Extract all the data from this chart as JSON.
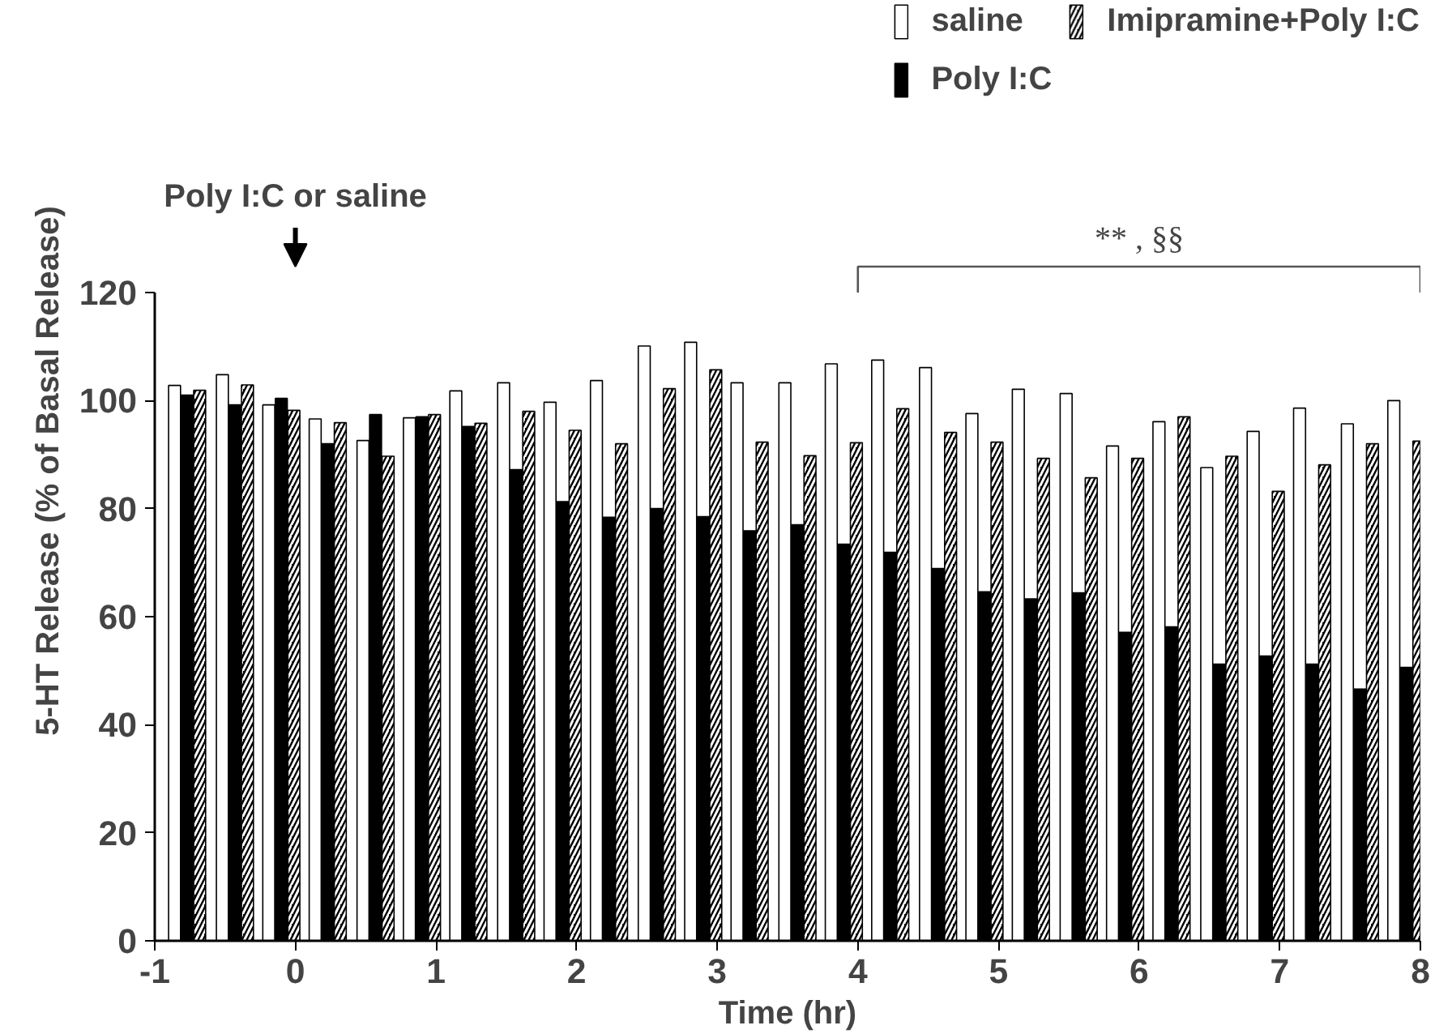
{
  "chart_data": {
    "type": "bar",
    "xlabel": "Time (hr)",
    "ylabel": "5-HT Release (% of Basal Release)",
    "x": [
      -0.77,
      -0.43,
      -0.1,
      0.23,
      0.57,
      0.9,
      1.23,
      1.57,
      1.9,
      2.23,
      2.57,
      2.9,
      3.23,
      3.57,
      3.9,
      4.23,
      4.57,
      4.9,
      5.23,
      5.57,
      5.9,
      6.23,
      6.57,
      6.9,
      7.23,
      7.57,
      7.9
    ],
    "series": [
      {
        "name": "saline",
        "color": "#ffffff",
        "values": [
          102.8,
          104.8,
          99.2,
          96.6,
          92.6,
          96.8,
          101.8,
          103.3,
          99.7,
          103.7,
          110.1,
          110.8,
          103.3,
          103.3,
          106.8,
          107.5,
          106.1,
          97.6,
          102.1,
          101.3,
          91.6,
          96.1,
          87.6,
          94.3,
          98.6,
          95.7,
          100
        ]
      },
      {
        "name": "Poly I:C",
        "color": "#000000",
        "values": [
          101,
          99.2,
          100.4,
          92,
          97.4,
          97,
          95.2,
          87.2,
          81.3,
          78.4,
          80,
          78.5,
          75.9,
          77,
          73.4,
          71.9,
          68.9,
          64.6,
          63.3,
          64.4,
          57.1,
          58.1,
          51.2,
          52.7,
          51.2,
          46.6,
          50.6
        ]
      },
      {
        "name": "Imipramine+Poly I:C",
        "color": "#000000",
        "values": [
          101.9,
          102.9,
          98.2,
          95.9,
          89.7,
          97.4,
          95.8,
          98,
          94.5,
          92,
          102.2,
          105.7,
          92.3,
          89.8,
          92.2,
          98.5,
          94.1,
          92.3,
          89.3,
          85.7,
          89.3,
          97,
          89.7,
          83.2,
          88.1,
          92,
          92.5
        ]
      }
    ],
    "xlim": [
      -1,
      8
    ],
    "xticks": [
      -1,
      0,
      1,
      2,
      3,
      4,
      5,
      6,
      7,
      8
    ],
    "ylim": [
      0,
      120
    ],
    "yticks": [
      0,
      20,
      40,
      60,
      80,
      100,
      120
    ],
    "annotations": [
      "Poly I:C or saline",
      "** , §§"
    ],
    "grid": false,
    "legend": "top right"
  }
}
